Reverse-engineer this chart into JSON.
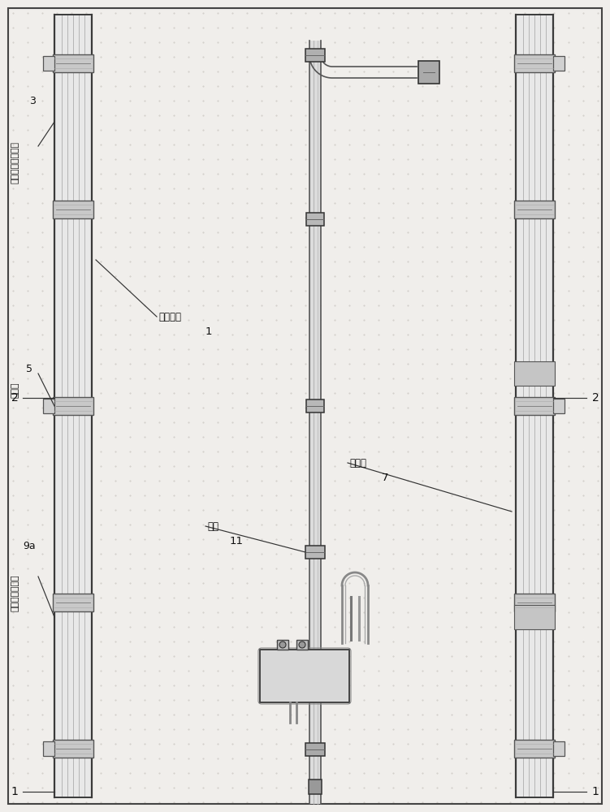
{
  "bg_color": "#f0eeeb",
  "rail_bg": "#e8e8e8",
  "rail_edge": "#3a3a3a",
  "rail_inner": "#999999",
  "bracket_face": "#c8c8c8",
  "bracket_edge": "#555555",
  "tube_color": "#555555",
  "tube_fill": "#e0e0e0",
  "clamp_face": "#b8b8b8",
  "box_face": "#d5d5d5",
  "text_color": "#111111",
  "ann_color": "#333333",
  "dot_color": "#c8c4be",
  "border_color": "#444444",
  "figsize": [
    7.51,
    10.0
  ],
  "dpi": 100,
  "labels": {
    "guang_fu": "光伏组件",
    "bei_mian_gou": "背面卡勾连接件",
    "bei_mian_gu": "背面固定块连接件",
    "qian_zhi_jia": "前支架",
    "hou_zhi_jia": "后支架",
    "xian_jia": "线夹"
  }
}
